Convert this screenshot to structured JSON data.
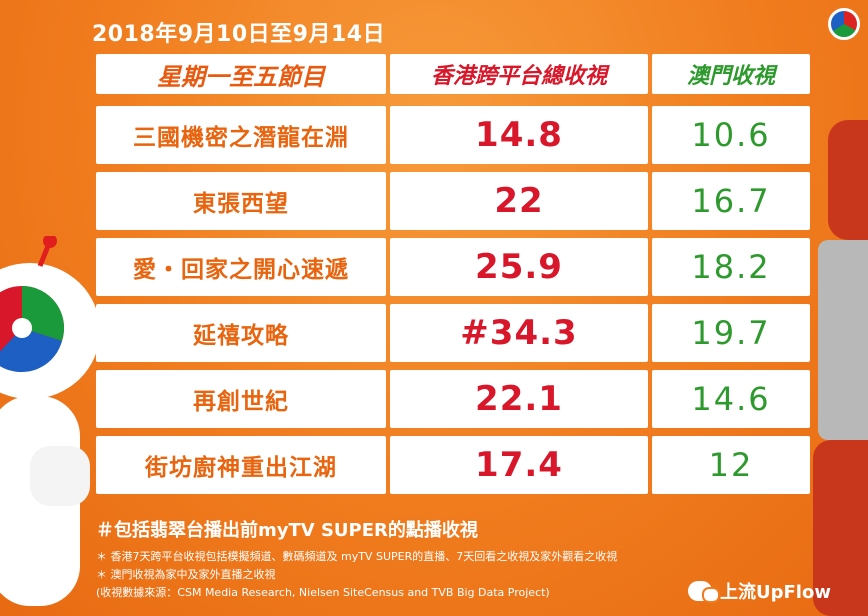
{
  "header": {
    "date_range": "2018年9月10日至9月14日"
  },
  "table": {
    "columns": [
      "星期一至五節目",
      "香港跨平台總收視",
      "澳門收視"
    ],
    "rows": [
      {
        "program": "三國機密之潛龍在淵",
        "hk": "14.8",
        "macau": "10.6"
      },
      {
        "program": "東張西望",
        "hk": "22",
        "macau": "16.7"
      },
      {
        "program": "愛・回家之開心速遞",
        "hk": "25.9",
        "macau": "18.2"
      },
      {
        "program": "延禧攻略",
        "hk": "#34.3",
        "macau": "19.7"
      },
      {
        "program": "再創世紀",
        "hk": "22.1",
        "macau": "14.6"
      },
      {
        "program": "街坊廚神重出江湖",
        "hk": "17.4",
        "macau": "12"
      }
    ]
  },
  "footnotes": {
    "main": "＃包括翡翠台播出前myTV SUPER的點播收視",
    "note1": "＊ 香港7天跨平台收視包括模擬頻道、數碼頻道及 myTV SUPER的直播、7天回看之收視及家外觀看之收視",
    "note2": "＊ 澳門收視為家中及家外直播之收視",
    "source": "(收視數據來源：CSM Media Research, Nielsen SiteCensus and TVB Big Data Project)"
  },
  "watermark": {
    "text": "上流UpFlow"
  },
  "colors": {
    "background": "#f07c1e",
    "program_text": "#e8640e",
    "hk_text": "#d8182a",
    "macau_text": "#2e9a2e"
  },
  "icons": [
    "tvb-logo-icon",
    "tvb-mascot",
    "robot-character",
    "wechat-icon"
  ]
}
